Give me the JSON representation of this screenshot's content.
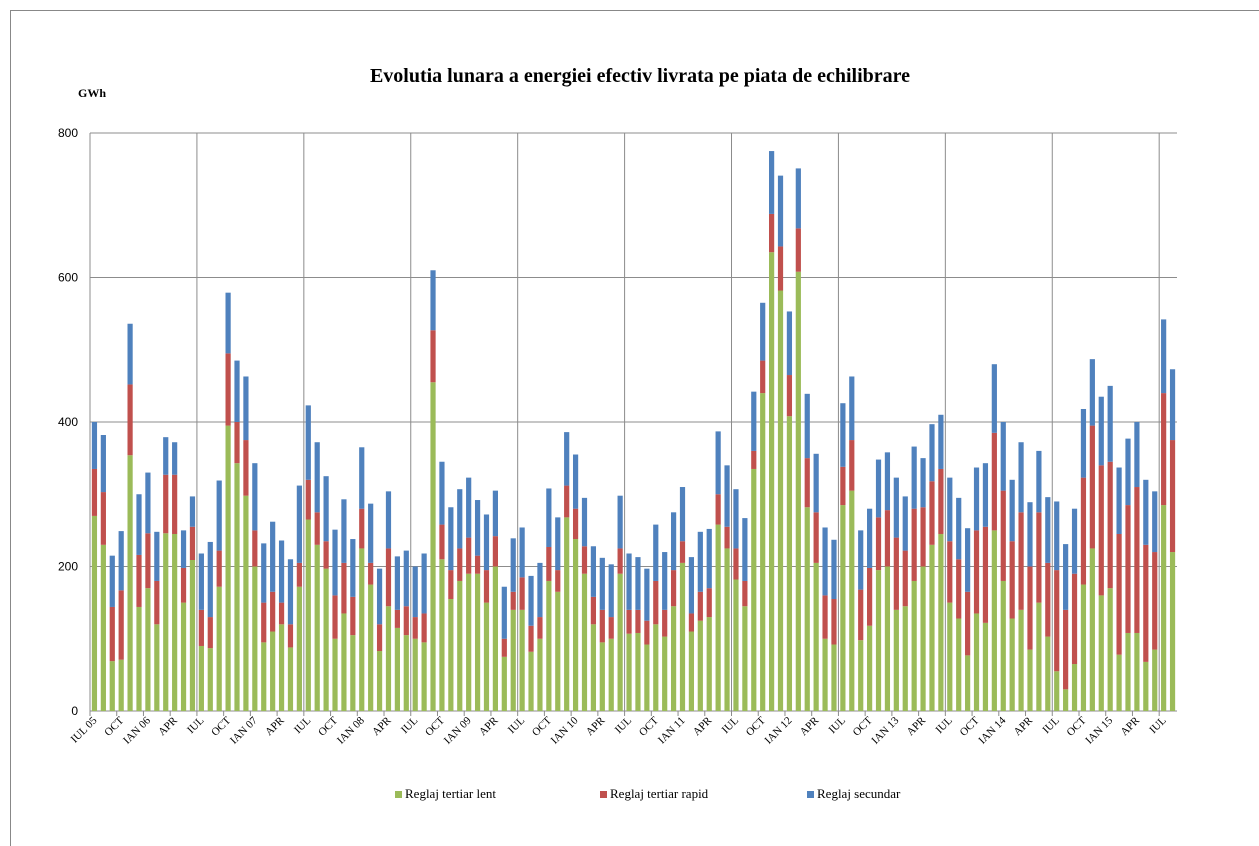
{
  "chart_data": {
    "type": "bar",
    "stacked": true,
    "title": "Evolutia lunara a energiei efectiv livrata pe piata de echilibrare",
    "y_label": "GWh",
    "categories": [
      "IUL 05",
      null,
      null,
      "OCT",
      null,
      null,
      "IAN 06",
      null,
      null,
      "APR",
      null,
      null,
      "IUL",
      null,
      null,
      "OCT",
      null,
      null,
      "IAN 07",
      null,
      null,
      "APR",
      null,
      null,
      "IUL",
      null,
      null,
      "OCT",
      null,
      null,
      "IAN 08",
      null,
      null,
      "APR",
      null,
      null,
      "IUL",
      null,
      null,
      "OCT",
      null,
      null,
      "IAN 09",
      null,
      null,
      "APR",
      null,
      null,
      "IUL",
      null,
      null,
      "OCT",
      null,
      null,
      "IAN 10",
      null,
      null,
      "APR",
      null,
      null,
      "IUL",
      null,
      null,
      "OCT",
      null,
      null,
      "IAN 11",
      null,
      null,
      "APR",
      null,
      null,
      "IUL",
      null,
      null,
      "OCT",
      null,
      null,
      "IAN 12",
      null,
      null,
      "APR",
      null,
      null,
      "IUL",
      null,
      null,
      "OCT",
      null,
      null,
      "IAN 13",
      null,
      null,
      "APR",
      null,
      null,
      "IUL",
      null,
      null,
      "OCT",
      null,
      null,
      "IAN 14",
      null,
      null,
      "APR",
      null,
      null,
      "IUL",
      null,
      null,
      "OCT",
      null,
      null,
      "IAN 15",
      null,
      null,
      "APR",
      null,
      null,
      "IUL",
      null
    ],
    "series": [
      {
        "name": "Reglaj tertiar lent",
        "color": "#9bbb59",
        "values": [
          270,
          230,
          69,
          71,
          354,
          144,
          170,
          120,
          246,
          245,
          150,
          209,
          90,
          87,
          172,
          395,
          343,
          298,
          200,
          95,
          110,
          120,
          88,
          172,
          265,
          230,
          197,
          100,
          135,
          105,
          225,
          175,
          83,
          145,
          115,
          105,
          100,
          95,
          455,
          210,
          155,
          180,
          190,
          190,
          150,
          200,
          75,
          140,
          140,
          82,
          100,
          180,
          165,
          268,
          238,
          190,
          120,
          95,
          100,
          190,
          107,
          108,
          92,
          120,
          103,
          145,
          205,
          110,
          125,
          130,
          258,
          225,
          182,
          145,
          335,
          440,
          635,
          582,
          408,
          608,
          282,
          205,
          100,
          92,
          285,
          305,
          98,
          118,
          195,
          200,
          140,
          145,
          180,
          200,
          230,
          245,
          150,
          128,
          77,
          135,
          122,
          250,
          180,
          128,
          140,
          85,
          150,
          103,
          55,
          30,
          65,
          175,
          225,
          160,
          170,
          78,
          108,
          108,
          68,
          85,
          285,
          220
        ]
      },
      {
        "name": "Reglaj tertiar rapid",
        "color": "#c0504d",
        "values": [
          65,
          73,
          75,
          96,
          98,
          72,
          76,
          60,
          81,
          82,
          48,
          46,
          50,
          43,
          50,
          100,
          57,
          77,
          50,
          55,
          55,
          30,
          32,
          33,
          55,
          45,
          38,
          60,
          70,
          53,
          55,
          30,
          37,
          80,
          25,
          40,
          30,
          40,
          72,
          48,
          40,
          45,
          50,
          25,
          45,
          42,
          25,
          25,
          45,
          36,
          30,
          47,
          30,
          44,
          42,
          38,
          38,
          45,
          30,
          35,
          33,
          32,
          33,
          60,
          37,
          50,
          30,
          25,
          40,
          40,
          42,
          30,
          43,
          35,
          25,
          45,
          53,
          61,
          57,
          60,
          68,
          70,
          60,
          63,
          53,
          70,
          70,
          80,
          73,
          78,
          100,
          77,
          100,
          82,
          88,
          90,
          85,
          82,
          88,
          115,
          133,
          135,
          125,
          107,
          135,
          115,
          125,
          102,
          140,
          110,
          125,
          148,
          170,
          180,
          175,
          167,
          177,
          202,
          162,
          135,
          155,
          155
        ]
      },
      {
        "name": "Reglaj secundar",
        "color": "#4f81bd",
        "values": [
          65,
          79,
          71,
          82,
          84,
          84,
          84,
          68,
          52,
          45,
          52,
          42,
          78,
          104,
          97,
          84,
          85,
          88,
          93,
          82,
          97,
          86,
          90,
          107,
          103,
          97,
          90,
          91,
          88,
          80,
          85,
          82,
          77,
          79,
          74,
          77,
          70,
          83,
          83,
          87,
          87,
          82,
          83,
          77,
          77,
          63,
          72,
          74,
          69,
          69,
          75,
          81,
          73,
          74,
          75,
          67,
          70,
          72,
          73,
          73,
          78,
          73,
          72,
          78,
          80,
          80,
          75,
          78,
          83,
          82,
          87,
          85,
          82,
          87,
          82,
          80,
          87,
          98,
          88,
          83,
          89,
          81,
          94,
          82,
          88,
          88,
          82,
          82,
          80,
          80,
          83,
          75,
          86,
          68,
          79,
          75,
          88,
          85,
          88,
          87,
          88,
          95,
          95,
          85,
          97,
          89,
          85,
          91,
          95,
          91,
          90,
          95,
          92,
          95,
          105,
          92,
          92,
          90,
          90,
          84,
          102,
          98
        ]
      }
    ],
    "ylim": [
      0,
      800
    ],
    "yticks": [
      0,
      200,
      400,
      600,
      800
    ],
    "grid": true,
    "legend": "bottom"
  }
}
